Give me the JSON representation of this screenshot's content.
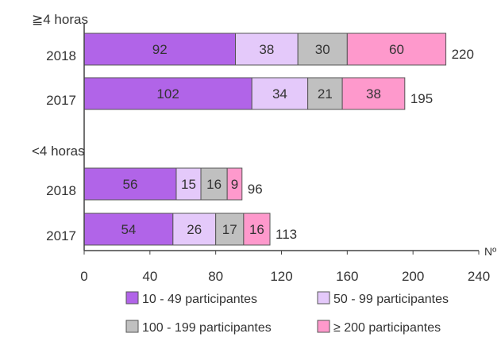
{
  "chart_data": {
    "type": "bar",
    "orientation": "horizontal",
    "stacked": true,
    "groups": [
      {
        "label": "≧4 horas",
        "categories": [
          "2018",
          "2017"
        ]
      },
      {
        "label": "<4 horas",
        "categories": [
          "2018",
          "2017"
        ]
      }
    ],
    "series": [
      {
        "name": "10 - 49 participantes",
        "color": "#b164e8",
        "values": [
          92,
          102,
          56,
          54
        ]
      },
      {
        "name": "50 - 99 participantes",
        "color": "#e4c9fa",
        "values": [
          38,
          34,
          15,
          26
        ]
      },
      {
        "name": "100 - 199 participantes",
        "color": "#c0c0c0",
        "values": [
          30,
          21,
          16,
          17
        ]
      },
      {
        "name": "≥ 200 participantes",
        "color": "#fe99cc",
        "values": [
          60,
          38,
          9,
          16
        ]
      }
    ],
    "totals": [
      220,
      195,
      96,
      113
    ],
    "xlabel": "Nº",
    "xlim": [
      0,
      240
    ],
    "xticks": [
      0,
      40,
      80,
      120,
      160,
      200,
      240
    ],
    "grid": false,
    "legend": "bottom"
  }
}
